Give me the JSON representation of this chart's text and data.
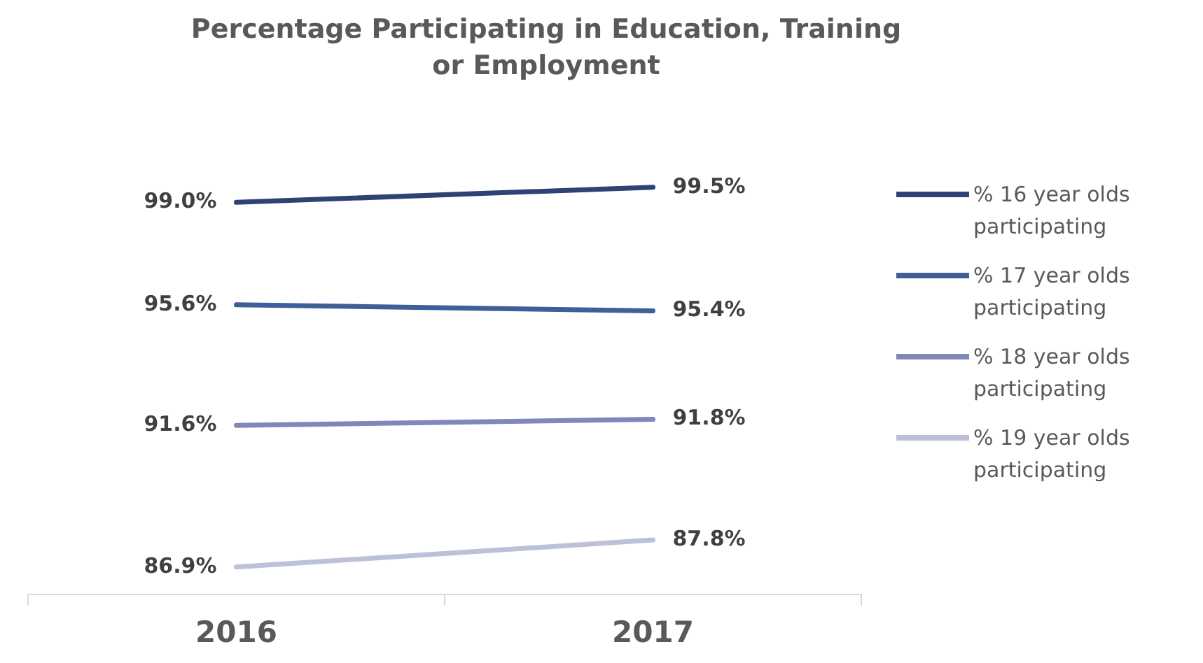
{
  "chart_data": {
    "type": "line",
    "title": "Percentage Participating in Education, Training or Employment",
    "categories": [
      "2016",
      "2017"
    ],
    "tick_labels": "x",
    "grid": false,
    "legend": "right",
    "marker": "none",
    "data_labels": true,
    "series": [
      {
        "name": "% 16 year olds participating",
        "color": "#2e4374",
        "values": [
          99.0,
          99.5
        ],
        "value_labels": [
          "99.0%",
          "99.5%"
        ]
      },
      {
        "name": "% 17 year olds participating",
        "color": "#3f5f98",
        "values": [
          95.6,
          95.4
        ],
        "value_labels": [
          "95.6%",
          "95.4%"
        ]
      },
      {
        "name": "% 18 year olds participating",
        "color": "#7f87bb",
        "values": [
          91.6,
          91.8
        ],
        "value_labels": [
          "91.6%",
          "91.8%"
        ]
      },
      {
        "name": "% 19 year olds participating",
        "color": "#bcc1d8",
        "values": [
          86.9,
          87.8
        ],
        "value_labels": [
          "86.9%",
          "87.8%"
        ]
      }
    ]
  }
}
